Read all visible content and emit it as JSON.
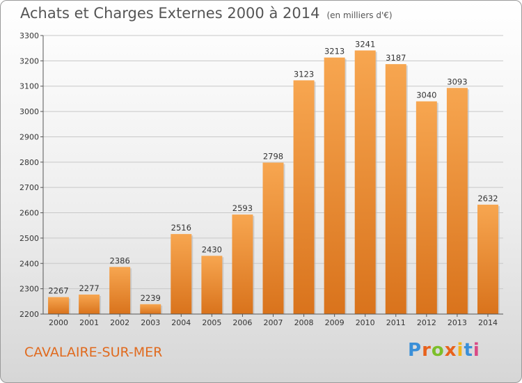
{
  "title": "Achats et Charges Externes 2000 à 2014",
  "unit": "(en milliers d'€)",
  "commune": "CAVALAIRE-SUR-MER",
  "logo": {
    "text": "Proxiti",
    "colors": [
      "#3a8fd8",
      "#e8621c",
      "#7cbf2a",
      "#e8621c",
      "#f2b51a",
      "#3a8fd8",
      "#d94a86"
    ]
  },
  "chart_data": {
    "type": "bar",
    "categories": [
      "2000",
      "2001",
      "2002",
      "2003",
      "2004",
      "2005",
      "2006",
      "2007",
      "2008",
      "2009",
      "2010",
      "2011",
      "2012",
      "2013",
      "2014"
    ],
    "values": [
      2267,
      2277,
      2386,
      2239,
      2516,
      2430,
      2593,
      2798,
      3123,
      3213,
      3241,
      3187,
      3040,
      3093,
      2632
    ],
    "ylim": [
      2200,
      3300
    ],
    "yticks": [
      2200,
      2300,
      2400,
      2500,
      2600,
      2700,
      2800,
      2900,
      3000,
      3100,
      3200,
      3300
    ],
    "grid": true,
    "bar_color": "#f0882e"
  }
}
